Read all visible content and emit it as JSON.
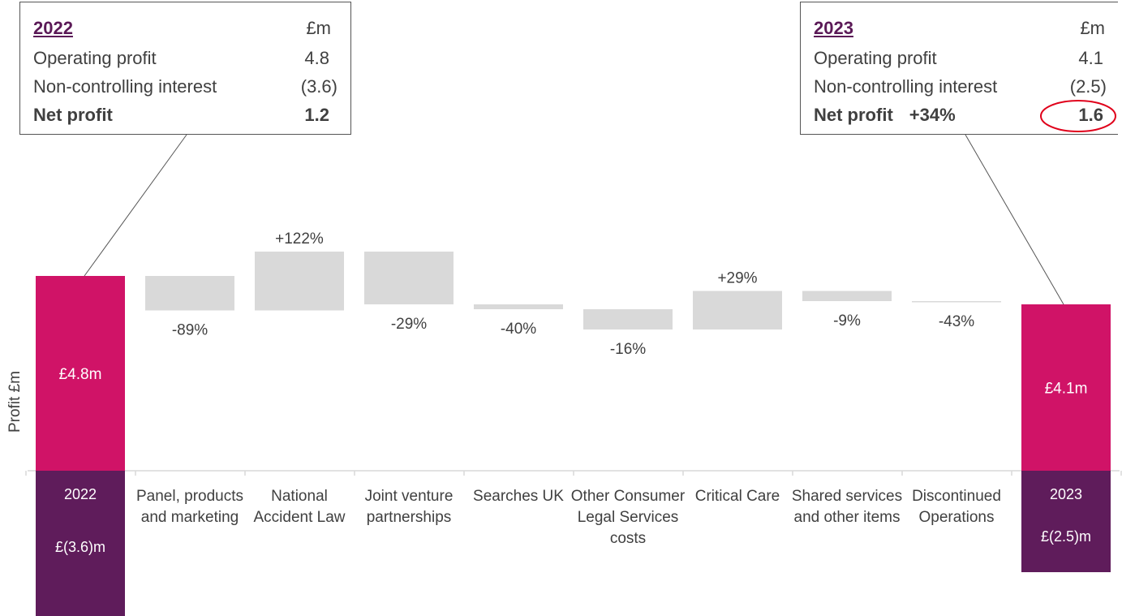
{
  "callout_2022": {
    "year": "2022",
    "unit": "£m",
    "rows": [
      {
        "label": "Operating profit",
        "value": "4.8"
      },
      {
        "label": "Non-controlling interest",
        "value": "(3.6)"
      },
      {
        "label": "Net profit",
        "value": "1.2"
      }
    ]
  },
  "callout_2023": {
    "year": "2023",
    "unit": "£m",
    "rows": [
      {
        "label": "Operating profit",
        "value": "4.1"
      },
      {
        "label": "Non-controlling interest",
        "value": "(2.5)"
      },
      {
        "label": "Net profit",
        "pct": "+34%",
        "value": "1.6"
      }
    ]
  },
  "chart_data": {
    "type": "bar",
    "subtype": "waterfall",
    "ylabel": "Profit £m",
    "colors": {
      "total": "#d01367",
      "nci": "#5f1c5b",
      "step": "#d9d9d9",
      "highlight_ring": "#e0001a"
    },
    "start": {
      "category": "2022",
      "value": 4.8,
      "label": "£4.8m",
      "nci_value": -3.6,
      "nci_label": "£(3.6)m"
    },
    "end": {
      "category": "2023",
      "value": 4.1,
      "label": "£4.1m",
      "nci_value": -2.5,
      "nci_label": "£(2.5)m"
    },
    "steps": [
      {
        "category": "Panel, products and marketing",
        "delta": -0.85,
        "label": "-89%"
      },
      {
        "category": "National Accident Law",
        "delta": 1.45,
        "label": "+122%"
      },
      {
        "category": "Joint venture partnerships",
        "delta": -1.3,
        "label": "-29%"
      },
      {
        "category": "Searches UK",
        "delta": -0.12,
        "label": "-40%"
      },
      {
        "category": "Other Consumer Legal Services costs",
        "delta": -0.5,
        "label": "-16%"
      },
      {
        "category": "Critical Care",
        "delta": 0.95,
        "label": "+29%"
      },
      {
        "category": "Shared services and other items",
        "delta": -0.25,
        "label": "-9%"
      },
      {
        "category": "Discontinued Operations",
        "delta": -0.02,
        "label": "-43%"
      }
    ]
  }
}
